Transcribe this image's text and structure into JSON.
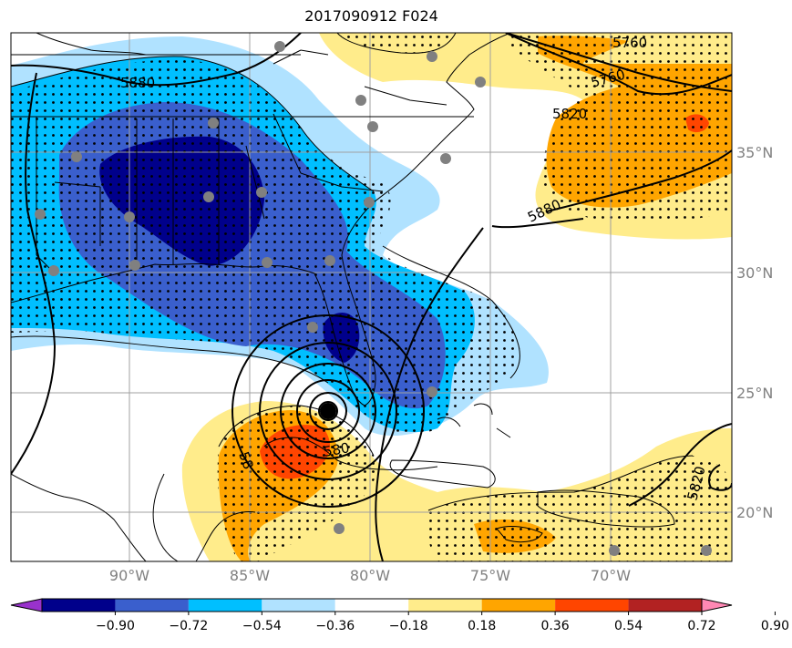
{
  "title": "2017090912 F024",
  "map": {
    "lat_labels": [
      "35°N",
      "30°N",
      "25°N",
      "20°N"
    ],
    "lon_labels": [
      "90°W",
      "85°W",
      "80°W",
      "75°W",
      "70°W"
    ],
    "contour_labels": [
      "5880",
      "5760",
      "5820",
      "5880",
      "5820",
      "58",
      "580",
      "5760"
    ]
  },
  "colorbar": {
    "colors": [
      "#9932cc",
      "#00008b",
      "#3a5fcd",
      "#00bfff",
      "#b0e2ff",
      "#ffffff",
      "#ffec8b",
      "#ffa500",
      "#ff4500",
      "#b22222",
      "#ff88b4"
    ],
    "ticks": [
      "−0.90",
      "−0.72",
      "−0.54",
      "−0.36",
      "−0.18",
      "0.18",
      "0.36",
      "0.54",
      "0.72",
      "0.90"
    ]
  },
  "legend_colors": {
    "dark_blue": "#00008b",
    "mid_blue": "#3a5fcd",
    "cyan": "#00bfff",
    "light_blue": "#b0e2ff",
    "yellow": "#ffec8b",
    "orange": "#ffa500",
    "red_orange": "#ff4500"
  }
}
